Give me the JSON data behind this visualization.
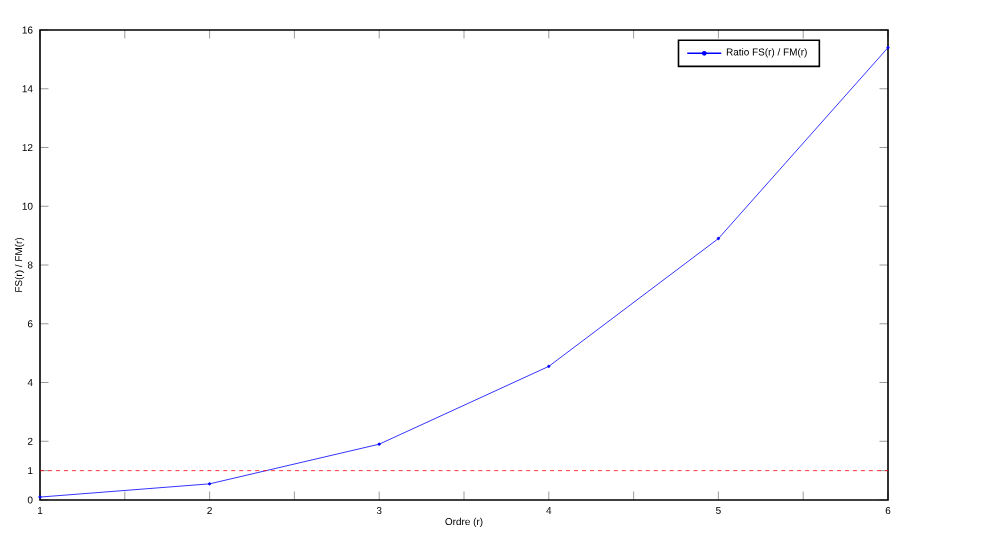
{
  "chart_data": {
    "type": "line",
    "xlabel": "Ordre (r)",
    "ylabel": "FS(r) / FM(r)",
    "x": [
      1,
      2,
      3,
      4,
      5,
      6
    ],
    "series": [
      {
        "name": "Ratio FS(r) / FM(r)",
        "color": "#0000ff",
        "values": [
          0.1,
          0.55,
          1.9,
          4.55,
          8.9,
          15.4
        ]
      }
    ],
    "xlim": [
      1,
      6
    ],
    "xticks": [
      1,
      {
        "value": 1.5,
        "label": null
      },
      2,
      {
        "value": 2.5,
        "label": null
      },
      3,
      {
        "value": 3.5,
        "label": null
      },
      4,
      {
        "value": 4.5,
        "label": null
      },
      5,
      {
        "value": 5.5,
        "label": null
      },
      6
    ],
    "ylim": [
      0,
      16
    ],
    "yticks": [
      0,
      1,
      2,
      4,
      6,
      8,
      10,
      12,
      14,
      16
    ],
    "ref_lines": [
      {
        "axis": "y",
        "value": 1,
        "label": null,
        "color": "#ff0000",
        "line_style": "dashed"
      }
    ],
    "legend": "top right",
    "marker": "circle",
    "line_style": "solid",
    "grid": false
  }
}
